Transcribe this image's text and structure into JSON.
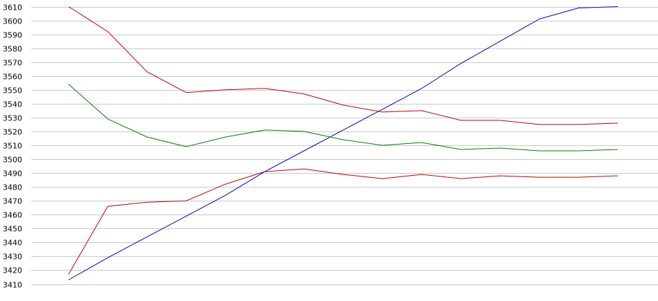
{
  "chart_data": {
    "type": "line",
    "title": "",
    "xlabel": "",
    "ylabel": "",
    "ylim": [
      3410,
      3610
    ],
    "y_ticks": [
      3410,
      3420,
      3430,
      3440,
      3450,
      3460,
      3470,
      3480,
      3490,
      3500,
      3510,
      3520,
      3530,
      3540,
      3550,
      3560,
      3570,
      3580,
      3590,
      3600,
      3610
    ],
    "x": [
      1,
      2,
      3,
      4,
      5,
      6,
      7,
      8,
      9,
      10,
      11,
      12,
      13,
      14,
      15
    ],
    "grid": true,
    "legend": "none",
    "series": [
      {
        "color": "#0000c0",
        "values": [
          3413,
          3429,
          3444,
          3459,
          3474,
          3491,
          3506,
          3521,
          3536,
          3551,
          3569,
          3585,
          3601,
          3609,
          3610
        ]
      },
      {
        "color": "#c00000",
        "values": [
          3610,
          3592,
          3563,
          3548,
          3550,
          3551,
          3547,
          3539,
          3534,
          3535,
          3528,
          3528,
          3525,
          3525,
          3526
        ]
      },
      {
        "color": "#008000",
        "values": [
          3554,
          3529,
          3516,
          3509,
          3516,
          3521,
          3520,
          3514,
          3510,
          3512,
          3507,
          3508,
          3506,
          3506,
          3507
        ]
      },
      {
        "color": "#c00000",
        "values": [
          3417,
          3466,
          3469,
          3470,
          3482,
          3491,
          3493,
          3489,
          3486,
          3489,
          3486,
          3488,
          3487,
          3487,
          3488
        ]
      }
    ]
  }
}
